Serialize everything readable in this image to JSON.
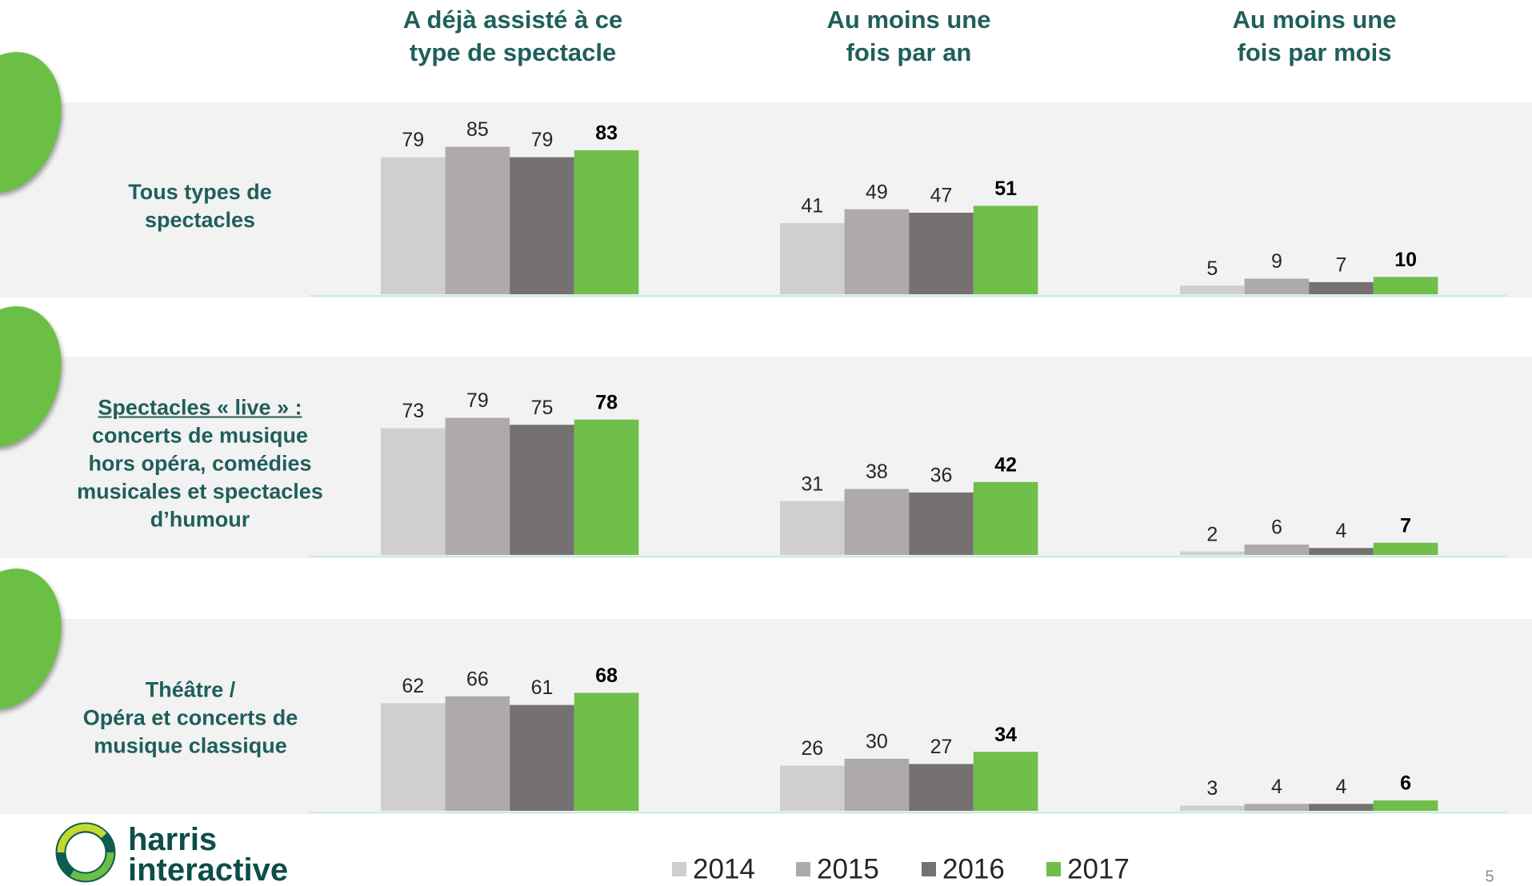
{
  "chart_data": [
    {
      "type": "bar",
      "title": "Tous types de spectacles",
      "categories": [
        "A déjà assisté à ce type de spectacle",
        "Au moins une fois par an",
        "Au moins une fois par mois"
      ],
      "ylim": [
        0,
        100
      ],
      "series": [
        {
          "name": "2014",
          "color": "#d0cece",
          "values": [
            79,
            41,
            5
          ]
        },
        {
          "name": "2015",
          "color": "#aeaaaa",
          "values": [
            85,
            49,
            9
          ]
        },
        {
          "name": "2016",
          "color": "#767171",
          "values": [
            79,
            47,
            7
          ]
        },
        {
          "name": "2017",
          "color": "#70bf4a",
          "values": [
            83,
            51,
            10
          ]
        }
      ]
    },
    {
      "type": "bar",
      "title": "Spectacles « live » :",
      "title_underline": true,
      "subtitle": "concerts de musique hors opéra, comédies musicales et spectacles d’humour",
      "categories": [
        "A déjà assisté à ce type de spectacle",
        "Au moins une fois par an",
        "Au moins une fois par mois"
      ],
      "ylim": [
        0,
        100
      ],
      "series": [
        {
          "name": "2014",
          "color": "#d0cece",
          "values": [
            73,
            31,
            2
          ]
        },
        {
          "name": "2015",
          "color": "#aeaaaa",
          "values": [
            79,
            38,
            6
          ]
        },
        {
          "name": "2016",
          "color": "#767171",
          "values": [
            75,
            36,
            4
          ]
        },
        {
          "name": "2017",
          "color": "#70bf4a",
          "values": [
            78,
            42,
            7
          ]
        }
      ]
    },
    {
      "type": "bar",
      "title": "Théâtre /",
      "subtitle": "Opéra et concerts de musique classique",
      "categories": [
        "A déjà assisté à ce type de spectacle",
        "Au moins une fois par an",
        "Au moins une fois par mois"
      ],
      "ylim": [
        0,
        100
      ],
      "series": [
        {
          "name": "2014",
          "color": "#d0cece",
          "values": [
            62,
            26,
            3
          ]
        },
        {
          "name": "2015",
          "color": "#aeaaaa",
          "values": [
            66,
            30,
            4
          ]
        },
        {
          "name": "2016",
          "color": "#767171",
          "values": [
            61,
            27,
            4
          ]
        },
        {
          "name": "2017",
          "color": "#70bf4a",
          "values": [
            68,
            34,
            6
          ]
        }
      ]
    }
  ],
  "logo": {
    "line1": "harris",
    "line2": "interactive"
  },
  "page_number": "5"
}
